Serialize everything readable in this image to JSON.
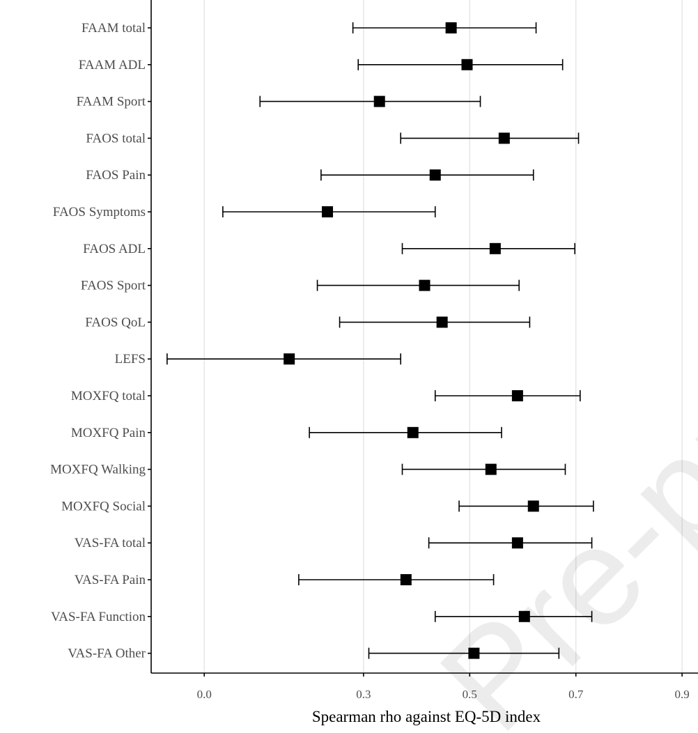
{
  "watermark": "Pre-pro",
  "chart_data": {
    "type": "forest",
    "xlabel": "Spearman rho against EQ-5D index",
    "xlim": [
      -0.1,
      0.93
    ],
    "xticks": [
      0.0,
      0.3,
      0.5,
      0.7,
      0.9
    ],
    "xtick_labels": [
      "0.0",
      "0.3",
      "0.5",
      "0.7",
      "0.9"
    ],
    "grid": "vertical major lines",
    "colors": {
      "point": "#000000",
      "grid": "#e6e6e6",
      "text": "#4d4d4d"
    },
    "rows": [
      {
        "label": "FAAM total",
        "estimate": 0.465,
        "lower": 0.28,
        "upper": 0.625
      },
      {
        "label": "FAAM ADL",
        "estimate": 0.495,
        "lower": 0.29,
        "upper": 0.675
      },
      {
        "label": "FAAM Sport",
        "estimate": 0.33,
        "lower": 0.105,
        "upper": 0.52
      },
      {
        "label": "FAOS total",
        "estimate": 0.565,
        "lower": 0.37,
        "upper": 0.705
      },
      {
        "label": "FAOS Pain",
        "estimate": 0.435,
        "lower": 0.22,
        "upper": 0.62
      },
      {
        "label": "FAOS Symptoms",
        "estimate": 0.232,
        "lower": 0.035,
        "upper": 0.435
      },
      {
        "label": "FAOS ADL",
        "estimate": 0.548,
        "lower": 0.373,
        "upper": 0.698
      },
      {
        "label": "FAOS Sport",
        "estimate": 0.415,
        "lower": 0.213,
        "upper": 0.593
      },
      {
        "label": "FAOS QoL",
        "estimate": 0.448,
        "lower": 0.255,
        "upper": 0.613
      },
      {
        "label": "LEFS",
        "estimate": 0.16,
        "lower": -0.07,
        "upper": 0.37
      },
      {
        "label": "MOXFQ total",
        "estimate": 0.59,
        "lower": 0.435,
        "upper": 0.708
      },
      {
        "label": "MOXFQ Pain",
        "estimate": 0.393,
        "lower": 0.198,
        "upper": 0.56
      },
      {
        "label": "MOXFQ Walking",
        "estimate": 0.54,
        "lower": 0.373,
        "upper": 0.68
      },
      {
        "label": "MOXFQ Social",
        "estimate": 0.62,
        "lower": 0.48,
        "upper": 0.733
      },
      {
        "label": "VAS-FA total",
        "estimate": 0.59,
        "lower": 0.423,
        "upper": 0.73
      },
      {
        "label": "VAS-FA Pain",
        "estimate": 0.38,
        "lower": 0.178,
        "upper": 0.545
      },
      {
        "label": "VAS-FA Function",
        "estimate": 0.603,
        "lower": 0.435,
        "upper": 0.73
      },
      {
        "label": "VAS-FA Other",
        "estimate": 0.508,
        "lower": 0.31,
        "upper": 0.668
      }
    ]
  }
}
